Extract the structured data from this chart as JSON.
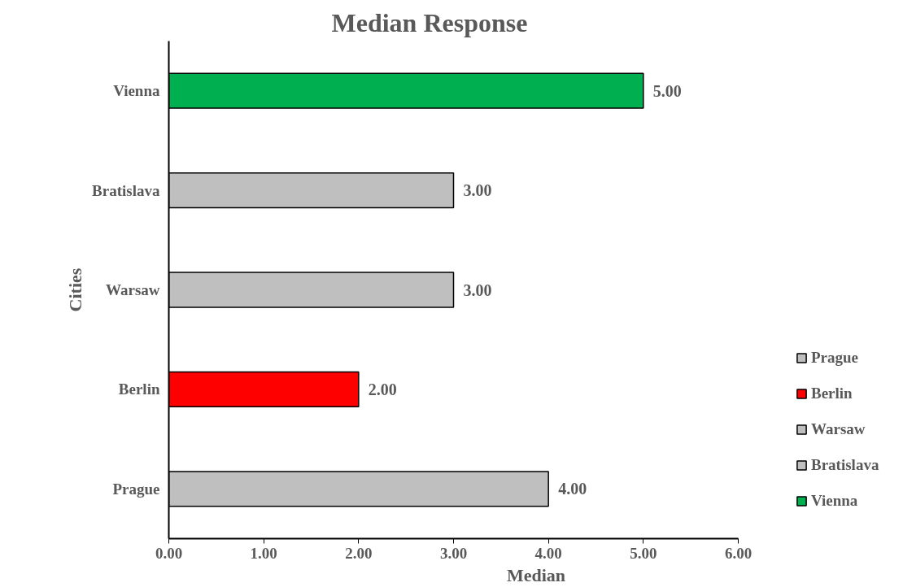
{
  "chart_data": {
    "type": "bar",
    "orientation": "horizontal",
    "title": "Median Response",
    "xlabel": "Median",
    "ylabel": "Cities",
    "categories": [
      "Vienna",
      "Bratislava",
      "Warsaw",
      "Berlin",
      "Prague"
    ],
    "series": [
      {
        "name": "Prague",
        "color": "#bfbfbf",
        "values": [
          null,
          null,
          null,
          null,
          4
        ],
        "value_labels": [
          null,
          null,
          null,
          null,
          "4.00"
        ]
      },
      {
        "name": "Berlin",
        "color": "#ff0000",
        "values": [
          null,
          null,
          null,
          2,
          null
        ],
        "value_labels": [
          null,
          null,
          null,
          "2.00",
          null
        ]
      },
      {
        "name": "Warsaw",
        "color": "#bfbfbf",
        "values": [
          null,
          null,
          3,
          null,
          null
        ],
        "value_labels": [
          null,
          null,
          "3.00",
          null,
          null
        ]
      },
      {
        "name": "Bratislava",
        "color": "#bfbfbf",
        "values": [
          null,
          3,
          null,
          null,
          null
        ],
        "value_labels": [
          null,
          "3.00",
          null,
          null,
          null
        ]
      },
      {
        "name": "Vienna",
        "color": "#00b050",
        "values": [
          5,
          null,
          null,
          null,
          null
        ],
        "value_labels": [
          "5.00",
          null,
          null,
          null,
          null
        ]
      }
    ],
    "xlim": [
      0,
      6
    ],
    "xticks": [
      {
        "value": 0,
        "label": "0.00"
      },
      {
        "value": 1,
        "label": "1.00"
      },
      {
        "value": 2,
        "label": "2.00"
      },
      {
        "value": 3,
        "label": "3.00"
      },
      {
        "value": 4,
        "label": "4.00"
      },
      {
        "value": 5,
        "label": "5.00"
      },
      {
        "value": 6,
        "label": "6.00"
      }
    ],
    "grid": false,
    "legend": "right"
  }
}
